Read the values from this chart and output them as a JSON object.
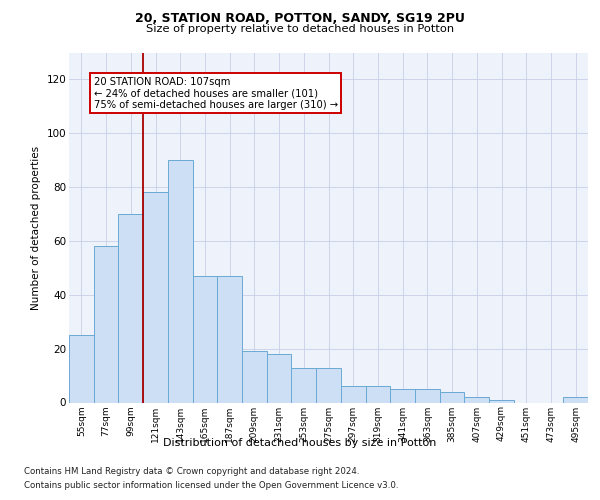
{
  "title1": "20, STATION ROAD, POTTON, SANDY, SG19 2PU",
  "title2": "Size of property relative to detached houses in Potton",
  "xlabel": "Distribution of detached houses by size in Potton",
  "ylabel": "Number of detached properties",
  "bar_labels": [
    "55sqm",
    "77sqm",
    "99sqm",
    "121sqm",
    "143sqm",
    "165sqm",
    "187sqm",
    "209sqm",
    "231sqm",
    "253sqm",
    "275sqm",
    "297sqm",
    "319sqm",
    "341sqm",
    "363sqm",
    "385sqm",
    "407sqm",
    "429sqm",
    "451sqm",
    "473sqm",
    "495sqm"
  ],
  "bar_values": [
    25,
    58,
    70,
    78,
    90,
    47,
    47,
    19,
    18,
    13,
    13,
    6,
    6,
    5,
    5,
    4,
    2,
    1,
    0,
    0,
    2
  ],
  "bar_color": "#ccdff5",
  "bar_edge_color": "#6aaad4",
  "vline_color": "#aa0000",
  "annotation_text": "20 STATION ROAD: 107sqm\n← 24% of detached houses are smaller (101)\n75% of semi-detached houses are larger (310) →",
  "ylim": [
    0,
    130
  ],
  "yticks": [
    0,
    20,
    40,
    60,
    80,
    100,
    120
  ],
  "footer1": "Contains HM Land Registry data © Crown copyright and database right 2024.",
  "footer2": "Contains public sector information licensed under the Open Government Licence v3.0.",
  "bg_color": "#eef2fa",
  "grid_color": "#c8cfe8",
  "vline_index": 2.5
}
